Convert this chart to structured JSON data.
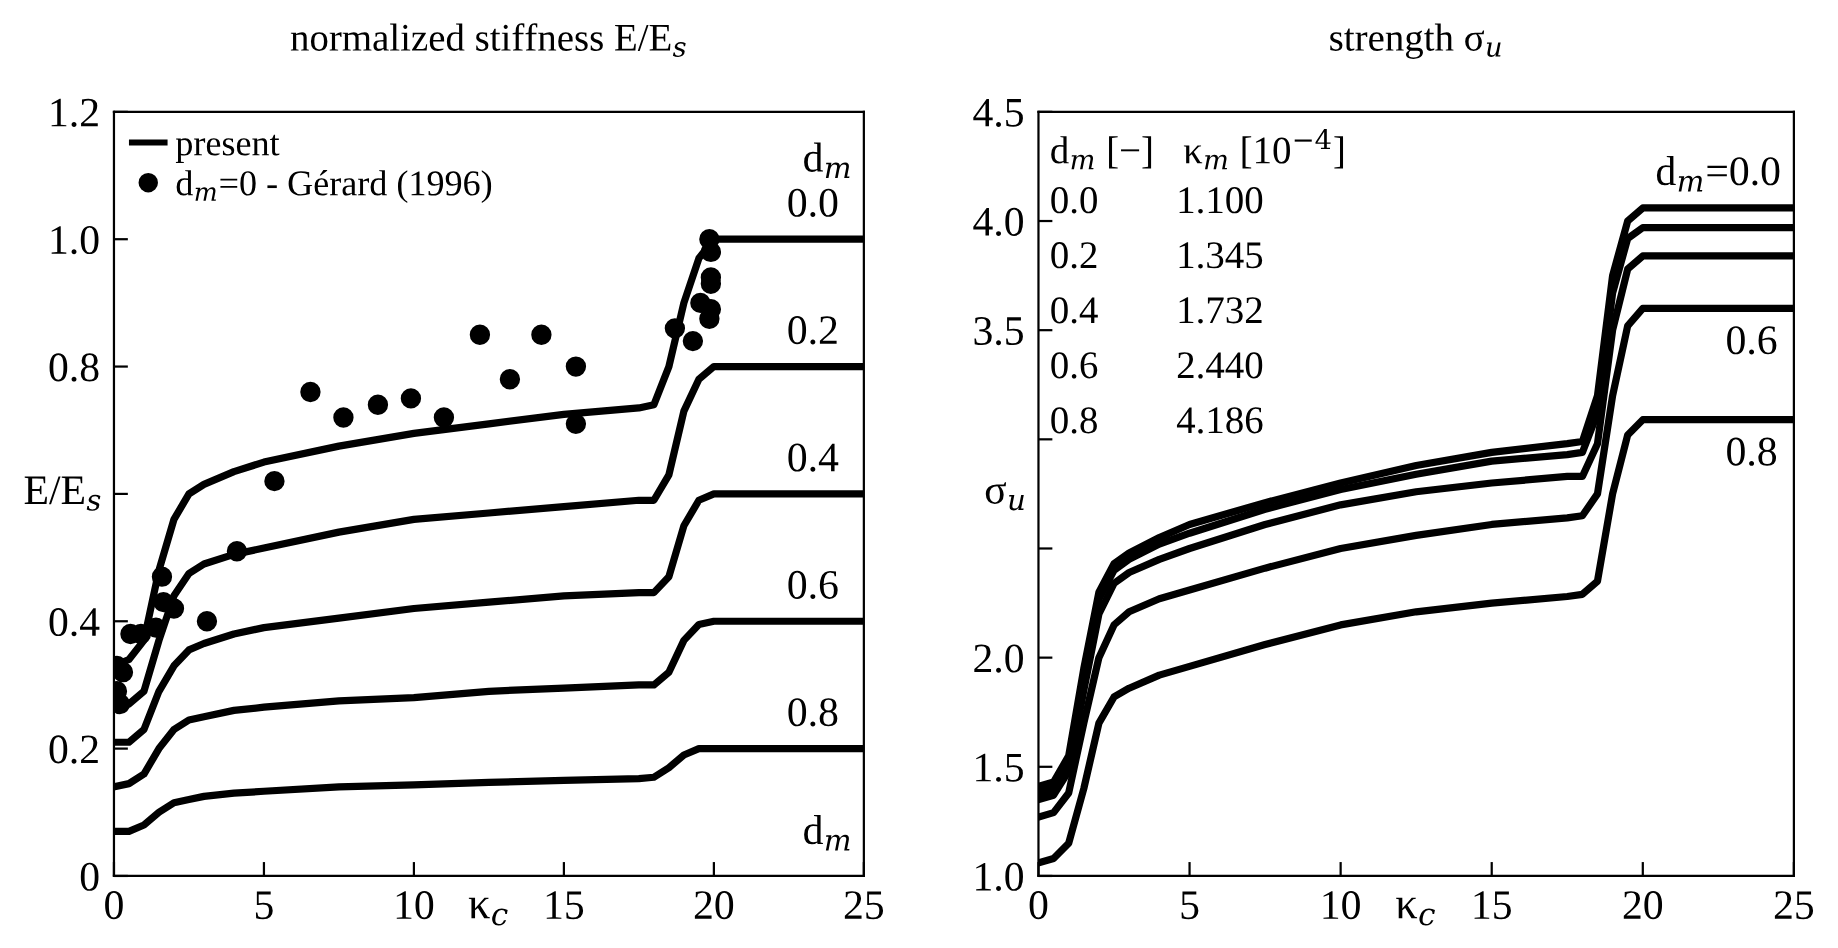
{
  "chart_data": [
    {
      "type": "line",
      "title": "normalized stiffness E/E$_{s}$",
      "xlabel": "κ$_{c}$",
      "ylabel": "E/E$_{s}$",
      "xlim": [
        0,
        25
      ],
      "xticks": [
        0,
        5,
        10,
        15,
        20,
        25
      ],
      "ylim": [
        0,
        1.2
      ],
      "yticks": [
        0,
        0.2,
        0.4,
        {
          "value": 0.6,
          "label": null
        },
        0.8,
        {
          "value": 1.0,
          "label": "1.0"
        },
        1.2
      ],
      "grid": false,
      "legend": "top left",
      "series": [
        {
          "name": "present",
          "color": "#000000",
          "x": [
            0,
            0.5,
            1,
            1.5,
            2,
            2.5,
            3,
            4,
            5,
            7.5,
            10,
            12.5,
            15,
            17.5,
            18,
            18.5,
            19,
            19.5,
            20,
            25
          ],
          "values": [
            0.33,
            0.34,
            0.37,
            0.48,
            0.56,
            0.6,
            0.615,
            0.635,
            0.65,
            0.675,
            0.695,
            0.71,
            0.725,
            0.735,
            0.74,
            0.8,
            0.9,
            0.97,
            1.0,
            1.0
          ]
        },
        {
          "color": "#000000",
          "x": [
            0,
            0.5,
            1,
            1.5,
            2,
            2.5,
            3,
            4,
            5,
            7.5,
            10,
            12.5,
            15,
            17.5,
            18,
            18.5,
            19,
            19.5,
            20,
            25
          ],
          "values": [
            0.27,
            0.27,
            0.29,
            0.37,
            0.44,
            0.475,
            0.49,
            0.505,
            0.515,
            0.54,
            0.56,
            0.57,
            0.58,
            0.59,
            0.59,
            0.63,
            0.73,
            0.78,
            0.8,
            0.8
          ]
        },
        {
          "color": "#000000",
          "x": [
            0,
            0.5,
            1,
            1.5,
            2,
            2.5,
            3,
            4,
            5,
            7.5,
            10,
            12.5,
            15,
            17.5,
            18,
            18.5,
            19,
            19.5,
            20,
            25
          ],
          "values": [
            0.21,
            0.21,
            0.23,
            0.29,
            0.33,
            0.355,
            0.365,
            0.38,
            0.39,
            0.405,
            0.42,
            0.43,
            0.44,
            0.445,
            0.445,
            0.47,
            0.55,
            0.59,
            0.6,
            0.6
          ]
        },
        {
          "color": "#000000",
          "x": [
            0,
            0.5,
            1,
            1.5,
            2,
            2.5,
            3,
            4,
            5,
            7.5,
            10,
            12.5,
            15,
            17.5,
            18,
            18.5,
            19,
            19.5,
            20,
            25
          ],
          "values": [
            0.14,
            0.145,
            0.16,
            0.2,
            0.23,
            0.245,
            0.25,
            0.26,
            0.265,
            0.275,
            0.28,
            0.29,
            0.295,
            0.3,
            0.3,
            0.32,
            0.37,
            0.395,
            0.4,
            0.4
          ]
        },
        {
          "color": "#000000",
          "x": [
            0,
            0.5,
            1,
            1.5,
            2,
            2.5,
            3,
            4,
            5,
            7.5,
            10,
            12.5,
            15,
            17.5,
            18,
            18.5,
            19,
            19.5,
            20,
            25
          ],
          "values": [
            0.07,
            0.07,
            0.08,
            0.1,
            0.115,
            0.12,
            0.125,
            0.13,
            0.133,
            0.14,
            0.143,
            0.147,
            0.15,
            0.153,
            0.155,
            0.17,
            0.19,
            0.2,
            0.2,
            0.2
          ]
        },
        {
          "name": "d$_{m}$=0 - Gérard (1996)",
          "type": "scatter",
          "marker": "circle",
          "color": "#000000",
          "x": [
            0.1,
            0.1,
            0.2,
            0.3,
            0.55,
            0.9,
            1.4,
            1.6,
            1.65,
            2.0,
            3.1,
            4.1,
            5.35,
            6.55,
            7.65,
            8.8,
            9.9,
            11.0,
            12.2,
            13.2,
            14.25,
            15.4,
            15.4,
            18.7,
            19.3,
            19.55,
            19.85,
            19.9,
            19.9,
            19.9,
            19.85,
            19.9
          ],
          "values": [
            0.33,
            0.29,
            0.27,
            0.32,
            0.38,
            0.38,
            0.39,
            0.47,
            0.43,
            0.42,
            0.4,
            0.51,
            0.62,
            0.76,
            0.72,
            0.74,
            0.75,
            0.72,
            0.85,
            0.78,
            0.85,
            0.8,
            0.71,
            0.86,
            0.84,
            0.9,
            1.0,
            0.98,
            0.94,
            0.93,
            0.875,
            0.89
          ]
        }
      ],
      "annotations": [
        "d$_{m}$",
        "d$_{m}$",
        {
          "text": "0.0",
          "x": 23.3,
          "y": 1.0
        },
        {
          "text": "0.2",
          "x": 23.3,
          "y": 0.8
        },
        {
          "text": "0.4",
          "x": 23.3,
          "y": 0.6
        },
        {
          "text": "0.6",
          "x": 23.3,
          "y": 0.4
        },
        {
          "text": "0.8",
          "x": 23.3,
          "y": 0.2
        }
      ]
    },
    {
      "type": "line",
      "title": "strength σ$_{u}$",
      "xlabel": "κ$_{c}$",
      "ylabel": "σ$_{u}$",
      "xlim": [
        0,
        25
      ],
      "xticks": [
        0,
        5,
        10,
        15,
        20,
        25
      ],
      "ylim": [
        1.0,
        4.5
      ],
      "yticks": [
        {
          "value": 1.0,
          "label": "1.0"
        },
        1.5,
        {
          "value": 2.0,
          "label": "2.0"
        },
        {
          "value": 2.5,
          "label": null
        },
        {
          "value": 3.0,
          "label": null
        },
        3.5,
        {
          "value": 4.0,
          "label": "4.0"
        },
        4.5
      ],
      "grid": false,
      "series": [
        {
          "color": "#000000",
          "x": [
            0,
            0.5,
            1,
            1.5,
            2,
            2.5,
            3,
            4,
            5,
            7.5,
            10,
            12.5,
            15,
            17.5,
            18,
            18.5,
            19,
            19.5,
            20,
            25
          ],
          "values": [
            1.41,
            1.43,
            1.55,
            1.95,
            2.3,
            2.43,
            2.48,
            2.55,
            2.61,
            2.71,
            2.8,
            2.88,
            2.94,
            2.98,
            2.99,
            3.2,
            3.75,
            4.0,
            4.06,
            4.06
          ]
        },
        {
          "color": "#000000",
          "x": [
            0,
            0.5,
            1,
            1.5,
            2,
            2.5,
            3,
            4,
            5,
            7.5,
            10,
            12.5,
            15,
            17.5,
            18,
            18.5,
            19,
            19.5,
            20,
            25
          ],
          "values": [
            1.38,
            1.4,
            1.52,
            1.92,
            2.27,
            2.4,
            2.45,
            2.52,
            2.57,
            2.68,
            2.77,
            2.84,
            2.9,
            2.93,
            2.94,
            3.12,
            3.67,
            3.92,
            3.97,
            3.97
          ]
        },
        {
          "color": "#000000",
          "x": [
            0,
            0.5,
            1,
            1.5,
            2,
            2.5,
            3,
            4,
            5,
            7.5,
            10,
            12.5,
            15,
            17.5,
            18,
            18.5,
            19,
            19.5,
            20,
            25
          ],
          "values": [
            1.35,
            1.37,
            1.48,
            1.85,
            2.2,
            2.34,
            2.39,
            2.45,
            2.5,
            2.61,
            2.7,
            2.76,
            2.8,
            2.83,
            2.83,
            2.98,
            3.5,
            3.78,
            3.84,
            3.84
          ]
        },
        {
          "color": "#000000",
          "x": [
            0,
            0.5,
            1,
            1.5,
            2,
            2.5,
            3,
            4,
            5,
            7.5,
            10,
            12.5,
            15,
            17.5,
            18,
            18.5,
            19,
            19.5,
            20,
            25
          ],
          "values": [
            1.27,
            1.29,
            1.38,
            1.7,
            2.0,
            2.15,
            2.21,
            2.27,
            2.31,
            2.41,
            2.5,
            2.56,
            2.61,
            2.64,
            2.65,
            2.75,
            3.2,
            3.52,
            3.6,
            3.6
          ]
        },
        {
          "color": "#000000",
          "x": [
            0,
            0.5,
            1,
            1.5,
            2,
            2.5,
            3,
            4,
            5,
            7.5,
            10,
            12.5,
            15,
            17.5,
            18,
            18.5,
            19,
            19.5,
            20,
            25
          ],
          "values": [
            1.06,
            1.08,
            1.15,
            1.4,
            1.7,
            1.82,
            1.86,
            1.92,
            1.96,
            2.06,
            2.15,
            2.21,
            2.25,
            2.28,
            2.29,
            2.35,
            2.75,
            3.02,
            3.09,
            3.09
          ]
        }
      ],
      "annotations": [
        "d$_{m}$ [−]   κ$_{m}$ [10$^{−4}$]",
        "0.0        1.100",
        "0.2        1.345",
        "0.4        1.732",
        "0.6        2.440",
        "0.8        4.186",
        {
          "text": "d$_{m}$=0.0",
          "x": 22.5,
          "y": 4.06
        },
        {
          "text": "0.6",
          "x": 23.6,
          "y": 3.6
        },
        {
          "text": "0.8",
          "x": 23.6,
          "y": 3.09
        }
      ]
    }
  ]
}
